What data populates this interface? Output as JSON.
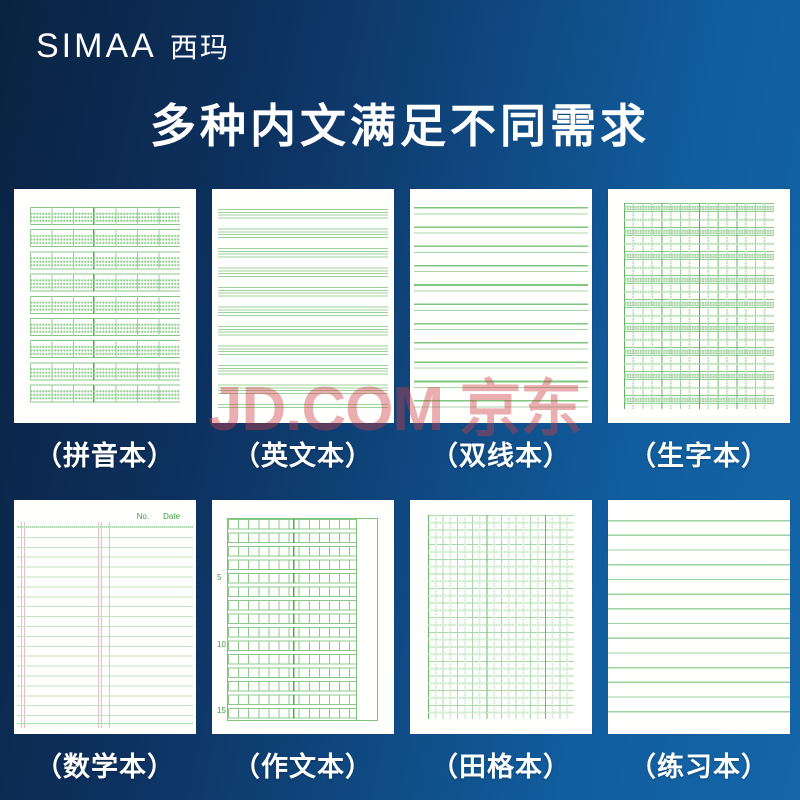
{
  "brand": {
    "logo_en": "SIMAA",
    "logo_cn": "西玛"
  },
  "title": "多种内文满足不同需求",
  "watermark": "JD.COM 京东",
  "notebooks": [
    {
      "id": "pinyin",
      "label": "（拼音本）"
    },
    {
      "id": "english",
      "label": "（英文本）"
    },
    {
      "id": "double",
      "label": "（双线本）"
    },
    {
      "id": "shengzi",
      "label": "（生字本）"
    },
    {
      "id": "math",
      "label": "（数学本）"
    },
    {
      "id": "zuowen",
      "label": "（作文本）"
    },
    {
      "id": "tiange",
      "label": "（田格本）"
    },
    {
      "id": "lianxi",
      "label": "（练习本）"
    }
  ],
  "math_header": {
    "no": "No.",
    "date": "Date"
  },
  "composition_row_numbers": [
    "5",
    "10",
    "15"
  ],
  "colors": {
    "background_left": "#0a2241",
    "background_right": "#1466a9",
    "line_green": "#8cc88c",
    "line_green_dark": "#55ab55",
    "line_red": "#f3bac1",
    "watermark_red": "#cd3e48",
    "text_white": "#ffffff"
  }
}
